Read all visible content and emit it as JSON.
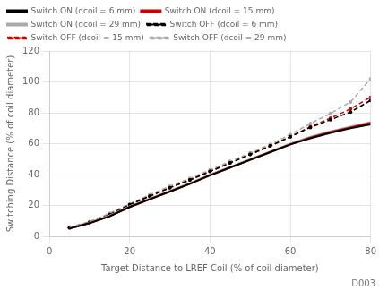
{
  "chart_data": {
    "type": "line",
    "xlabel": "Target Distance to LREF Coil (% of coil diameter)",
    "ylabel": "Switching Distance (% of coil diameter)",
    "annotation": "D003",
    "xlim": [
      0,
      80
    ],
    "ylim": [
      0,
      120
    ],
    "xticks": [
      0,
      20,
      40,
      60,
      80
    ],
    "yticks": [
      0,
      20,
      40,
      60,
      80,
      100,
      120
    ],
    "grid": true,
    "legend": "upper left",
    "x": [
      5,
      10,
      15,
      20,
      25,
      30,
      35,
      40,
      45,
      50,
      55,
      60,
      65,
      70,
      75,
      80
    ],
    "series": [
      {
        "name": "Switch ON (dcoil = 6 mm)",
        "color": "#000000",
        "line_style": "solid",
        "values": [
          5.0,
          8.5,
          13.0,
          19.0,
          24.0,
          29.0,
          34.0,
          39.5,
          44.5,
          49.5,
          54.5,
          59.5,
          63.5,
          67.0,
          70.0,
          72.5
        ]
      },
      {
        "name": "Switch ON (dcoil = 15 mm)",
        "color": "#cc0000",
        "line_style": "solid",
        "values": [
          5.0,
          8.5,
          13.0,
          19.0,
          24.0,
          29.0,
          34.0,
          39.5,
          44.5,
          49.5,
          54.5,
          59.5,
          64.0,
          67.5,
          70.5,
          73.5
        ]
      },
      {
        "name": "Switch ON (dcoil = 29 mm)",
        "color": "#aaaaaa",
        "line_style": "solid",
        "values": [
          5.5,
          9.0,
          13.5,
          19.5,
          24.5,
          29.5,
          34.5,
          40.0,
          45.0,
          50.0,
          55.0,
          60.0,
          64.5,
          68.0,
          71.0,
          74.0
        ]
      },
      {
        "name": "Switch OFF (dcoil = 6 mm)",
        "color": "#000000",
        "line_style": "dashed",
        "marker": "dot",
        "values": [
          5.5,
          9.0,
          14.0,
          20.5,
          26.0,
          31.5,
          36.5,
          42.0,
          47.5,
          53.0,
          58.5,
          64.5,
          70.5,
          75.5,
          80.5,
          88.0
        ]
      },
      {
        "name": "Switch OFF (dcoil = 15 mm)",
        "color": "#cc0000",
        "line_style": "dashed",
        "marker": "dot",
        "values": [
          5.5,
          9.0,
          14.0,
          20.5,
          26.0,
          31.5,
          36.5,
          42.0,
          47.5,
          53.0,
          58.5,
          64.5,
          71.0,
          76.5,
          82.5,
          90.0
        ]
      },
      {
        "name": "Switch OFF (dcoil = 29 mm)",
        "color": "#aaaaaa",
        "line_style": "dashed",
        "marker": "dot",
        "values": [
          6.0,
          9.5,
          15.0,
          21.0,
          27.0,
          32.5,
          37.5,
          43.0,
          48.5,
          54.0,
          59.5,
          66.0,
          73.0,
          79.5,
          87.0,
          102.0
        ]
      }
    ]
  }
}
